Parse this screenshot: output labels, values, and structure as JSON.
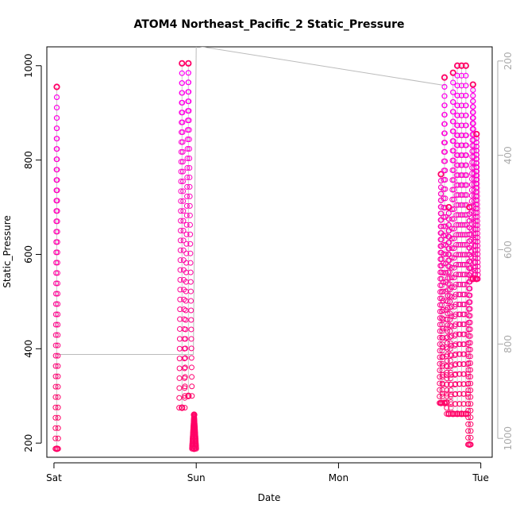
{
  "chart_data": {
    "type": "scatter",
    "title": "ATOM4 Northeast_Pacific_2 Static_Pressure",
    "xlabel": "Date",
    "ylabel": "Static_Pressure",
    "x_ticks": [
      {
        "label": "Sat",
        "day": 0
      },
      {
        "label": "Sun",
        "day": 1
      },
      {
        "label": "Mon",
        "day": 2
      },
      {
        "label": "Tue",
        "day": 3
      }
    ],
    "xlim_days": [
      -0.05,
      3.08
    ],
    "ylim": [
      170,
      1040
    ],
    "y_ticks": [
      200,
      400,
      600,
      800,
      1000
    ],
    "right_axis": {
      "ylim": [
        1040,
        170
      ],
      "ticks": [
        200,
        400,
        600,
        800,
        1000
      ],
      "color": "#aaaaaa"
    },
    "series_style": {
      "marker": "open-circle",
      "color_top": "#ff00ff",
      "color_bottom": "#ff0066"
    },
    "grey_track": [
      {
        "day": 0.02,
        "value": 388
      },
      {
        "day": 0.98,
        "value": 388
      },
      {
        "day": 1.0,
        "value": 1042
      },
      {
        "day": 2.75,
        "value": 958
      }
    ],
    "casts": [
      {
        "day_start": 0.01,
        "day_end": 0.03,
        "min": 188,
        "max": 955
      },
      {
        "day_start": 0.88,
        "day_end": 0.92,
        "min": 275,
        "max": 1005
      },
      {
        "day_start": 0.92,
        "day_end": 0.97,
        "min": 300,
        "max": 1005
      },
      {
        "day_start": 0.97,
        "day_end": 1.0,
        "min": 188,
        "max": 260
      },
      {
        "day_start": 2.71,
        "day_end": 2.73,
        "min": 285,
        "max": 770
      },
      {
        "day_start": 2.73,
        "day_end": 2.76,
        "min": 285,
        "max": 975
      },
      {
        "day_start": 2.76,
        "day_end": 2.79,
        "min": 262,
        "max": 700
      },
      {
        "day_start": 2.79,
        "day_end": 2.82,
        "min": 262,
        "max": 985
      },
      {
        "day_start": 2.82,
        "day_end": 2.85,
        "min": 262,
        "max": 1000
      },
      {
        "day_start": 2.85,
        "day_end": 2.88,
        "min": 262,
        "max": 1000
      },
      {
        "day_start": 2.88,
        "day_end": 2.91,
        "min": 262,
        "max": 1000
      },
      {
        "day_start": 2.91,
        "day_end": 2.93,
        "min": 197,
        "max": 700
      },
      {
        "day_start": 2.93,
        "day_end": 2.96,
        "min": 548,
        "max": 960
      },
      {
        "day_start": 2.96,
        "day_end": 2.98,
        "min": 548,
        "max": 855
      }
    ]
  }
}
